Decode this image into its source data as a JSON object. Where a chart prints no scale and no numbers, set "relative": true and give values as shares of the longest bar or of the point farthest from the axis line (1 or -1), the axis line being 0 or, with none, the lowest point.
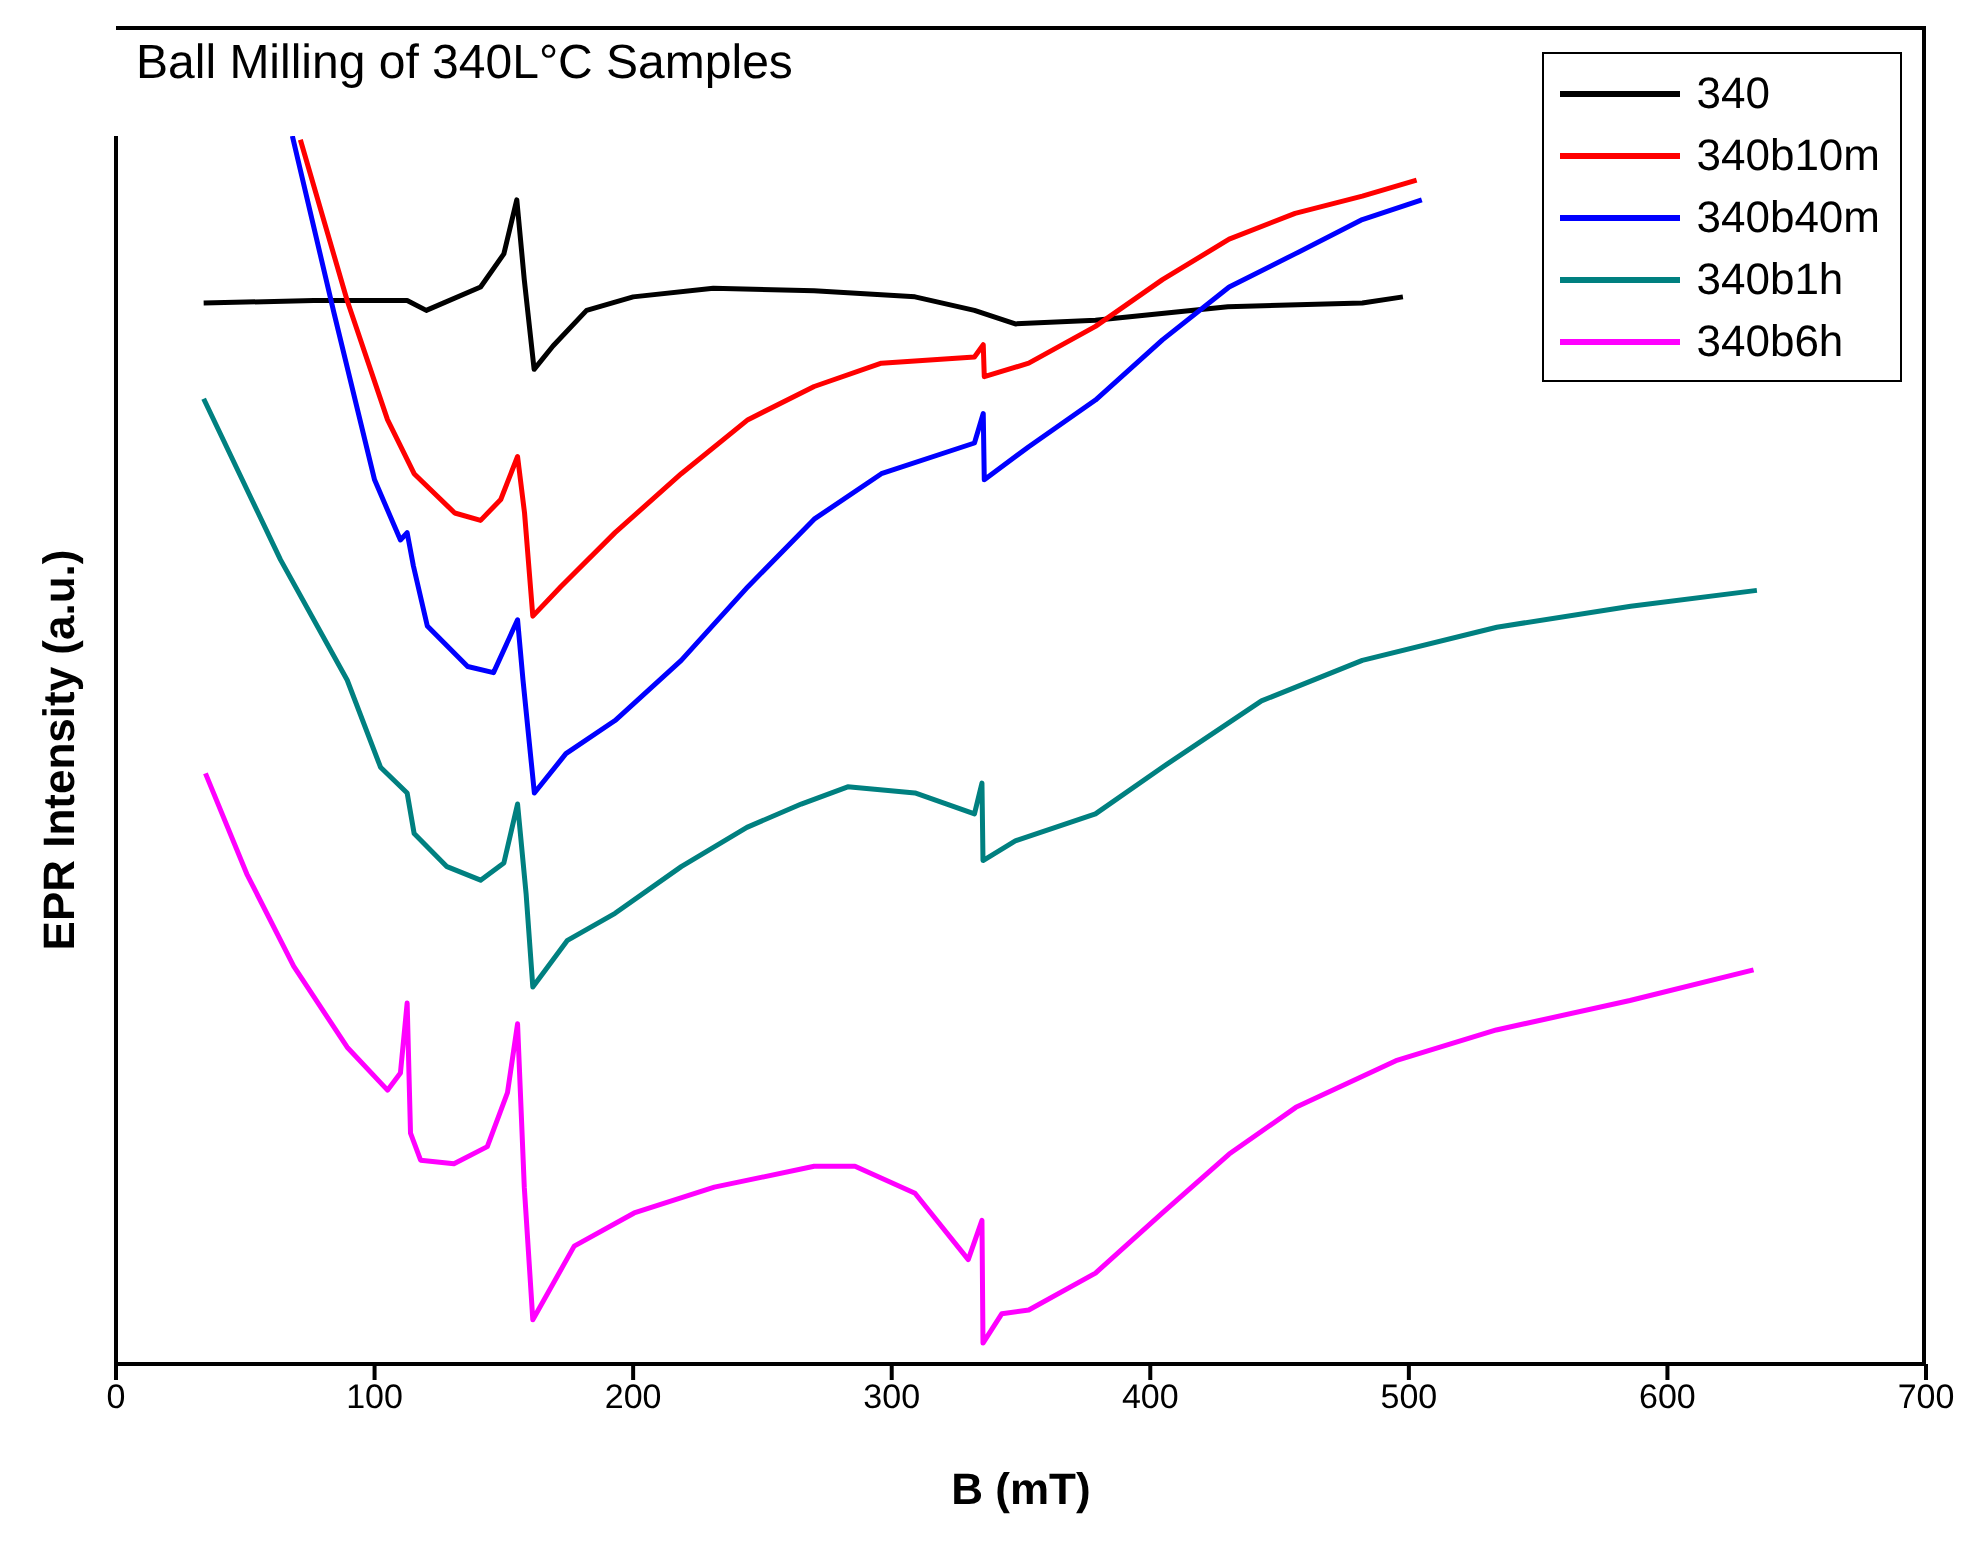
{
  "chart_data": {
    "type": "line",
    "title": "Ball Milling of 340L°C Samples",
    "xlabel": "B (mT)",
    "ylabel": "EPR Intensity (a.u.)",
    "relative": true,
    "xlim": [
      0,
      700
    ],
    "xticks": [
      0,
      100,
      200,
      300,
      400,
      500,
      600,
      700
    ],
    "legend": "top right",
    "series": [
      {
        "name": "340",
        "color": "#000000",
        "x": [
          33.9,
          76.5,
          112.6,
          120,
          141,
          150,
          155,
          157.9,
          161.7,
          169,
          182,
          200,
          231,
          270,
          309,
          332,
          347.8,
          378.8,
          430,
          482,
          497.7
        ],
        "values": [
          0.864,
          0.866,
          0.866,
          0.858,
          0.877,
          0.904,
          0.948,
          0.883,
          0.81,
          0.829,
          0.858,
          0.869,
          0.876,
          0.874,
          0.869,
          0.858,
          0.847,
          0.85,
          0.861,
          0.864,
          0.869
        ]
      },
      {
        "name": "340b10m",
        "color": "#ff0000",
        "x": [
          71.3,
          89.4,
          105,
          115.3,
          131,
          141,
          148.8,
          155.3,
          158,
          161.2,
          172,
          193,
          218.6,
          244.4,
          270,
          296,
          332,
          335.4,
          335.8,
          353,
          378.8,
          404.7,
          430.5,
          456,
          482,
          503
        ],
        "values": [
          0.997,
          0.866,
          0.769,
          0.725,
          0.693,
          0.687,
          0.704,
          0.739,
          0.693,
          0.609,
          0.633,
          0.677,
          0.725,
          0.769,
          0.796,
          0.815,
          0.82,
          0.83,
          0.804,
          0.815,
          0.845,
          0.883,
          0.916,
          0.937,
          0.951,
          0.964
        ]
      },
      {
        "name": "340b40m",
        "color": "#0000ff",
        "x": [
          68.2,
          84.3,
          100,
          110,
          112.6,
          115,
          120.4,
          136,
          146,
          155.3,
          157.4,
          161.8,
          174,
          193,
          218.6,
          244.4,
          270,
          296,
          332,
          335.4,
          335.8,
          353,
          378.8,
          404.7,
          430.5,
          456,
          482,
          505
        ],
        "values": [
          1,
          0.856,
          0.72,
          0.671,
          0.677,
          0.65,
          0.601,
          0.568,
          0.563,
          0.606,
          0.557,
          0.465,
          0.497,
          0.524,
          0.573,
          0.633,
          0.688,
          0.725,
          0.75,
          0.774,
          0.72,
          0.747,
          0.785,
          0.834,
          0.877,
          0.904,
          0.932,
          0.948
        ]
      },
      {
        "name": "340b1h",
        "color": "#008080",
        "x": [
          33.9,
          63.6,
          89.4,
          102.3,
          112.6,
          115.3,
          128,
          141,
          150,
          155.3,
          158.6,
          161.2,
          174.6,
          193,
          218.6,
          244,
          265,
          283,
          309,
          332,
          334.9,
          335.3,
          347.8,
          378.8,
          404.7,
          443,
          482,
          534,
          585.8,
          634.6
        ],
        "values": [
          0.786,
          0.655,
          0.557,
          0.486,
          0.465,
          0.432,
          0.405,
          0.394,
          0.408,
          0.456,
          0.383,
          0.307,
          0.345,
          0.367,
          0.405,
          0.437,
          0.456,
          0.47,
          0.465,
          0.448,
          0.473,
          0.41,
          0.426,
          0.448,
          0.486,
          0.54,
          0.573,
          0.6,
          0.617,
          0.63
        ]
      },
      {
        "name": "340b6h",
        "color": "#ff00ff",
        "x": [
          34.6,
          50.6,
          68.7,
          89.4,
          105,
          110,
          112.6,
          113.9,
          117.8,
          130.7,
          143.6,
          151.4,
          155.3,
          157.9,
          161.2,
          177.2,
          200.4,
          231.4,
          270,
          285.8,
          309,
          329.6,
          334.9,
          335.3,
          342.6,
          353,
          378.8,
          404.7,
          430.5,
          456.3,
          495,
          533.8,
          585.5,
          633.3
        ],
        "values": [
          0.481,
          0.399,
          0.324,
          0.258,
          0.223,
          0.237,
          0.294,
          0.188,
          0.166,
          0.163,
          0.177,
          0.221,
          0.277,
          0.144,
          0.036,
          0.096,
          0.123,
          0.144,
          0.161,
          0.161,
          0.139,
          0.085,
          0.117,
          0.017,
          0.041,
          0.044,
          0.074,
          0.123,
          0.171,
          0.209,
          0.247,
          0.272,
          0.296,
          0.321
        ]
      }
    ]
  }
}
